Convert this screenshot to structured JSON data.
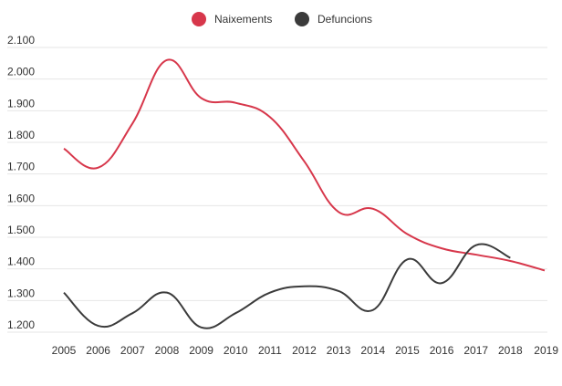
{
  "chart_data": {
    "type": "line",
    "title": "",
    "xlabel": "",
    "ylabel": "",
    "ylim": [
      1200,
      2100
    ],
    "yticks": [
      1200,
      1300,
      1400,
      1500,
      1600,
      1700,
      1800,
      1900,
      2000,
      2100
    ],
    "ytick_labels": [
      "1.200",
      "1.300",
      "1.400",
      "1.500",
      "1.600",
      "1.700",
      "1.800",
      "1.900",
      "2.000",
      "2.100"
    ],
    "categories": [
      "2005",
      "2006",
      "2007",
      "2008",
      "2009",
      "2010",
      "2011",
      "2012",
      "2013",
      "2014",
      "2015",
      "2016",
      "2017",
      "2018",
      "2019"
    ],
    "grid": true,
    "legend_position": "top-center",
    "series": [
      {
        "name": "Naixements",
        "color": "#d7374b",
        "values": [
          1780,
          1720,
          1860,
          2060,
          1940,
          1925,
          1880,
          1740,
          1580,
          1590,
          1510,
          1465,
          1445,
          1425,
          1395
        ]
      },
      {
        "name": "Defuncions",
        "color": "#3b3b3b",
        "values": [
          1325,
          1220,
          1260,
          1325,
          1215,
          1260,
          1325,
          1345,
          1330,
          1270,
          1430,
          1355,
          1475,
          1435,
          null
        ]
      }
    ]
  }
}
